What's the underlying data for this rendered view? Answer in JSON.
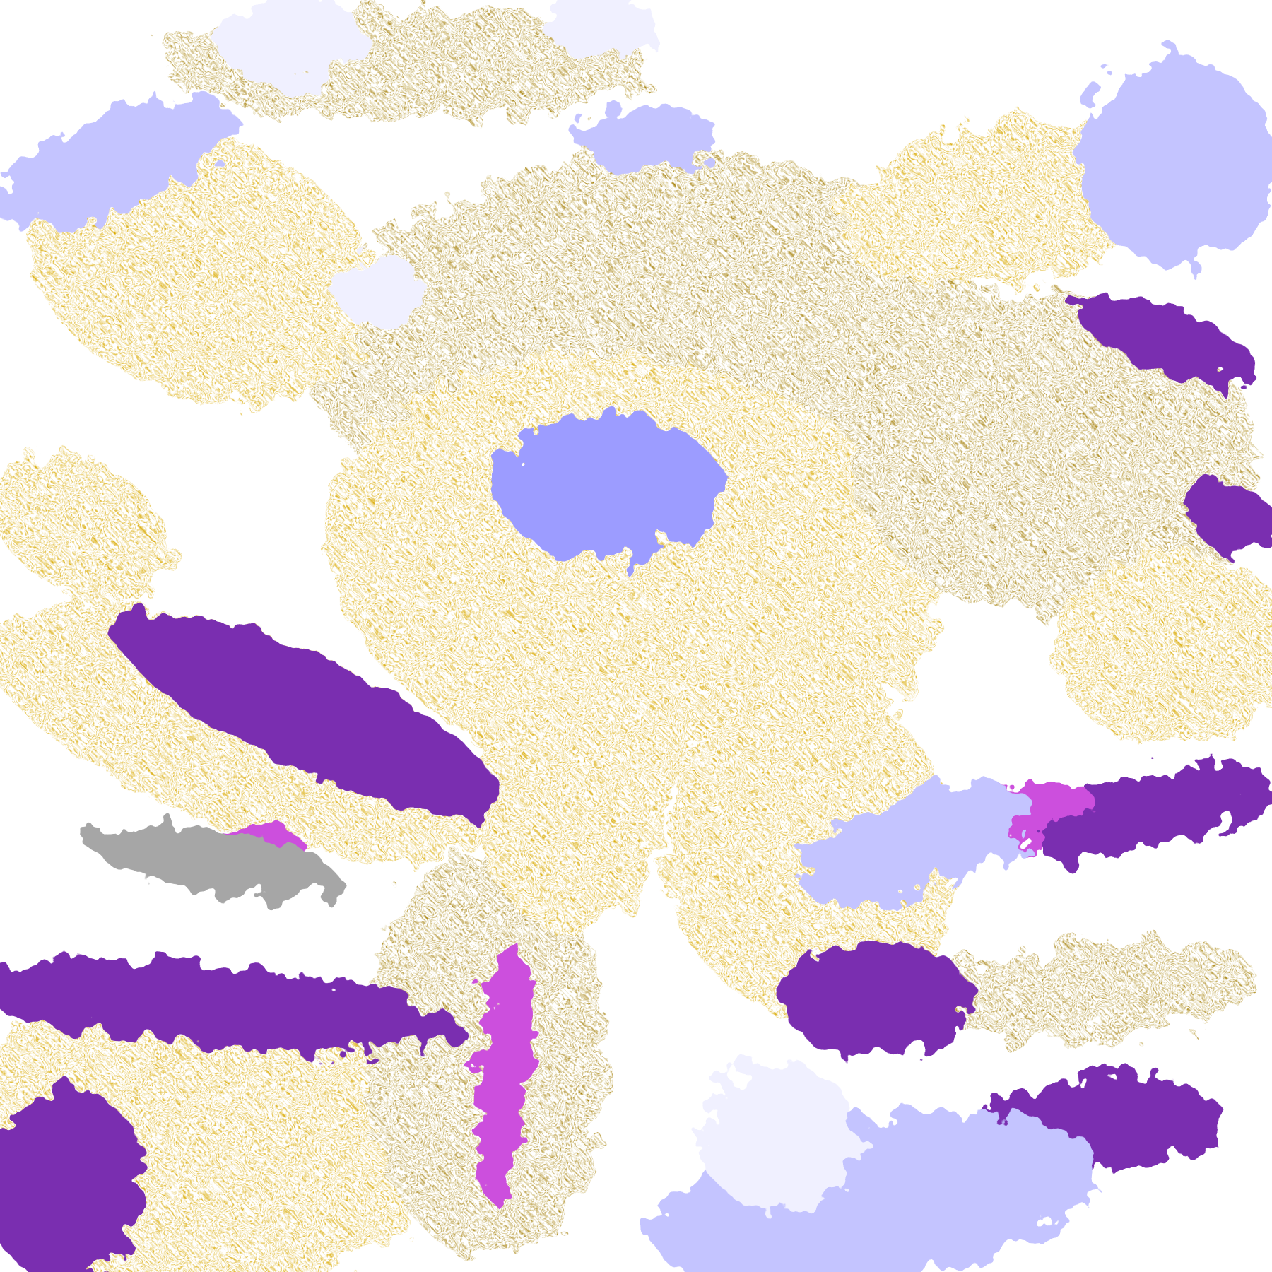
{
  "image": {
    "kind": "satellite cloud-type classification map",
    "palette": {
      "clear": "#ffffff",
      "low_cloud": "#d9a900",
      "low_cloud_dark": "#a88410",
      "mid_cloud": "#a6a6a6",
      "high_thin": "#c4c4ff",
      "high_opaque": "#9c9cff",
      "very_high": "#f0f0ff",
      "deep_convective": "#cc4fdd",
      "fractional": "#7a2fb0"
    }
  }
}
